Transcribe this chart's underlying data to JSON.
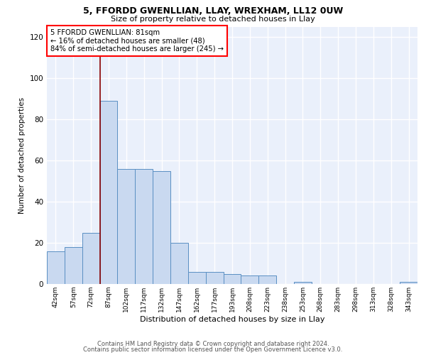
{
  "title1": "5, FFORDD GWENLLIAN, LLAY, WREXHAM, LL12 0UW",
  "title2": "Size of property relative to detached houses in Llay",
  "xlabel": "Distribution of detached houses by size in Llay",
  "ylabel": "Number of detached properties",
  "categories": [
    "42sqm",
    "57sqm",
    "72sqm",
    "87sqm",
    "102sqm",
    "117sqm",
    "132sqm",
    "147sqm",
    "162sqm",
    "177sqm",
    "193sqm",
    "208sqm",
    "223sqm",
    "238sqm",
    "253sqm",
    "268sqm",
    "283sqm",
    "298sqm",
    "313sqm",
    "328sqm",
    "343sqm"
  ],
  "values": [
    16,
    18,
    25,
    89,
    56,
    56,
    55,
    20,
    6,
    6,
    5,
    4,
    4,
    0,
    1,
    0,
    0,
    0,
    0,
    0,
    1
  ],
  "bar_color": "#c9d9f0",
  "bar_edge_color": "#5a8fc3",
  "vline_color": "#8b0000",
  "annotation_text": "5 FFORDD GWENLLIAN: 81sqm\n← 16% of detached houses are smaller (48)\n84% of semi-detached houses are larger (245) →",
  "annotation_box_color": "white",
  "annotation_box_edge_color": "red",
  "ylim": [
    0,
    125
  ],
  "yticks": [
    0,
    20,
    40,
    60,
    80,
    100,
    120
  ],
  "background_color": "#eaf0fb",
  "grid_color": "white",
  "footer1": "Contains HM Land Registry data © Crown copyright and database right 2024.",
  "footer2": "Contains public sector information licensed under the Open Government Licence v3.0."
}
